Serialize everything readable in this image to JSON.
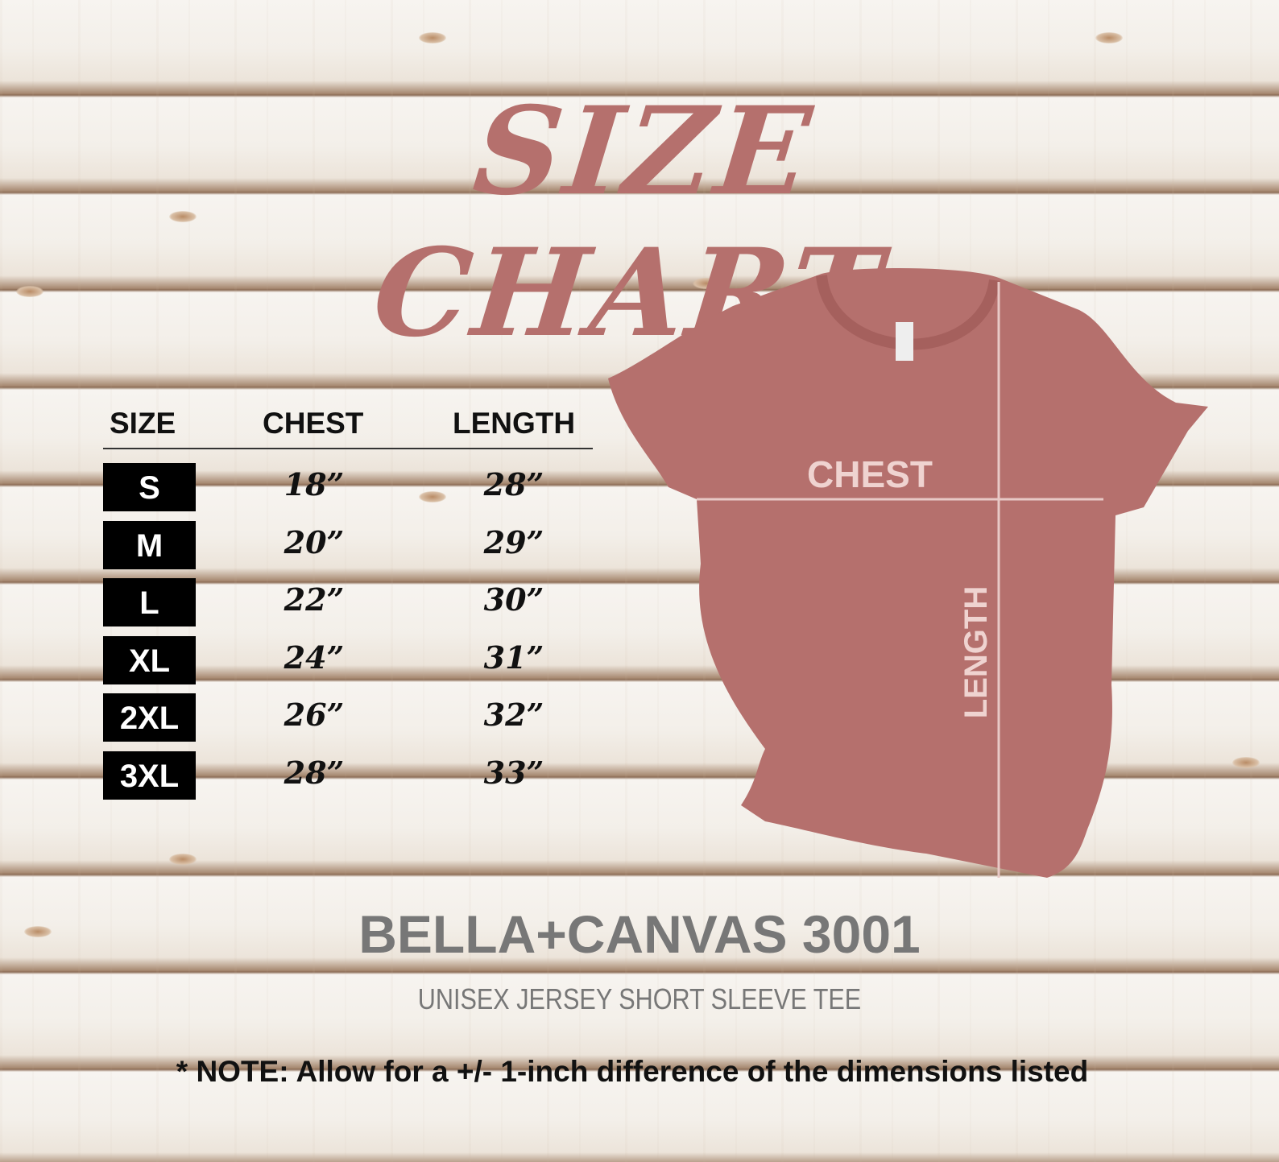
{
  "title": "SIZE CHART",
  "table": {
    "headers": [
      "SIZE",
      "CHEST",
      "LENGTH"
    ],
    "rows": [
      {
        "size": "S",
        "chest": "18”",
        "length": "28”"
      },
      {
        "size": "M",
        "chest": "20”",
        "length": "29”"
      },
      {
        "size": "L",
        "chest": "22”",
        "length": "30”"
      },
      {
        "size": "XL",
        "chest": "24”",
        "length": "31”"
      },
      {
        "size": "2XL",
        "chest": "26”",
        "length": "32”"
      },
      {
        "size": "3XL",
        "chest": "28”",
        "length": "33”"
      }
    ]
  },
  "diagram": {
    "chest_label": "CHEST",
    "length_label": "LENGTH",
    "shirt_color": "#b5706d"
  },
  "brand": "BELLA+CANVAS 3001",
  "subtitle": "UNISEX JERSEY SHORT SLEEVE TEE",
  "note": "* NOTE: Allow for a +/- 1-inch difference of the dimensions listed"
}
